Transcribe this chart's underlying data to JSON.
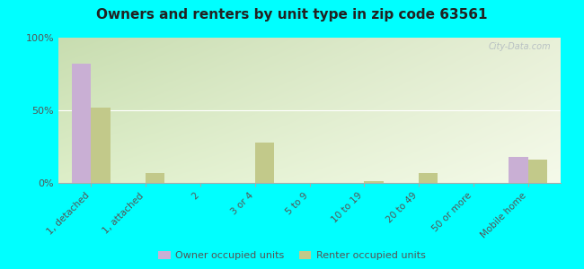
{
  "title": "Owners and renters by unit type in zip code 63561",
  "categories": [
    "1, detached",
    "1, attached",
    "2",
    "3 or 4",
    "5 to 9",
    "10 to 19",
    "20 to 49",
    "50 or more",
    "Mobile home"
  ],
  "owner_values": [
    82,
    0,
    0,
    0,
    0,
    0,
    0,
    0,
    18
  ],
  "renter_values": [
    52,
    7,
    0,
    28,
    0,
    1,
    7,
    0,
    16
  ],
  "owner_color": "#c9afd4",
  "renter_color": "#c2c98a",
  "background_color": "#00ffff",
  "grad_top": "#c8ddb0",
  "grad_bottom": "#eef5e0",
  "ylim": [
    0,
    100
  ],
  "yticks": [
    0,
    50,
    100
  ],
  "ytick_labels": [
    "0%",
    "50%",
    "100%"
  ],
  "bar_width": 0.35,
  "legend_owner": "Owner occupied units",
  "legend_renter": "Renter occupied units",
  "watermark": "City-Data.com"
}
